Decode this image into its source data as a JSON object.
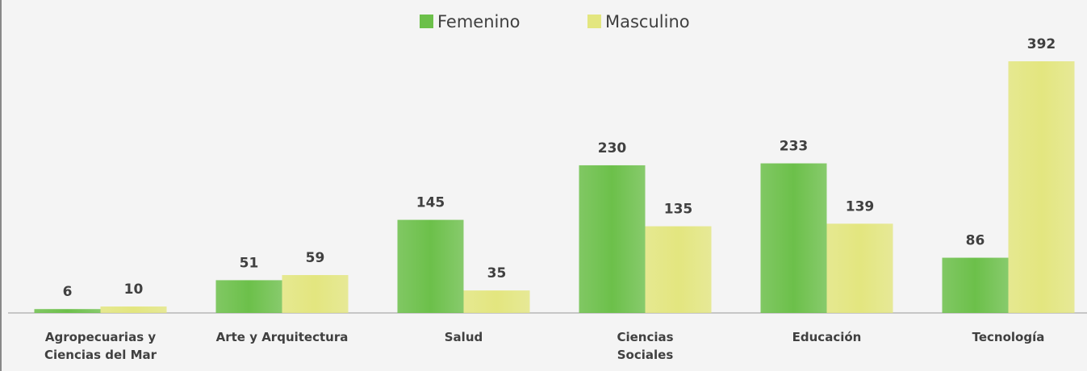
{
  "chart_data": {
    "type": "bar",
    "categories": [
      "Agropecuarias y\nCiencias del Mar",
      "Arte y Arquitectura",
      "Salud",
      "Ciencias\nSociales",
      "Educación",
      "Tecnología"
    ],
    "series": [
      {
        "name": "Femenino",
        "color": "#6cc04a",
        "values": [
          6,
          51,
          145,
          230,
          233,
          86
        ]
      },
      {
        "name": "Masculino",
        "color": "#e3e67f",
        "values": [
          10,
          59,
          35,
          135,
          139,
          392
        ]
      }
    ]
  }
}
